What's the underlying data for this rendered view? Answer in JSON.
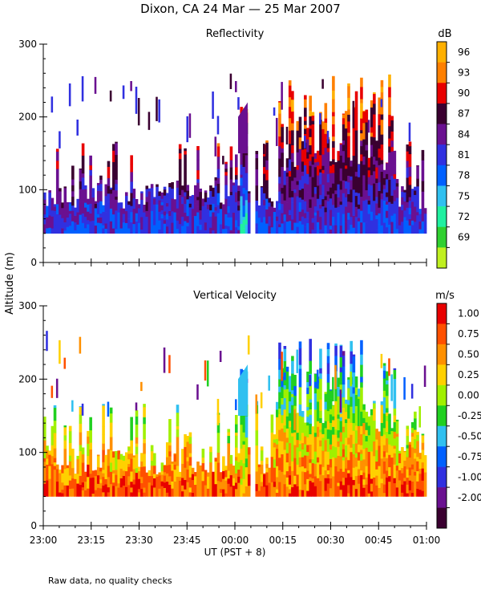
{
  "figure": {
    "title": "Dixon, CA 24 Mar — 25 Mar 2007",
    "ylabel": "Altitude (m)",
    "xlabel": "UT  (PST + 8)",
    "note": "Raw data, no quality checks",
    "x_ticks": [
      "23:00",
      "23:15",
      "23:30",
      "23:45",
      "00:00",
      "00:15",
      "00:30",
      "00:45",
      "01:00"
    ]
  },
  "chart_data": [
    {
      "type": "heatmap",
      "title": "Reflectivity",
      "xlim": [
        "23:00",
        "01:00"
      ],
      "ylim": [
        0,
        300
      ],
      "y_ticks": [
        0,
        100,
        200,
        300
      ],
      "colorbar": {
        "unit": "dB",
        "ticks": [
          "96",
          "93",
          "90",
          "87",
          "84",
          "81",
          "78",
          "75",
          "72",
          "69"
        ],
        "colors": [
          "#ffb000",
          "#ff8000",
          "#e80000",
          "#3a0030",
          "#6a1090",
          "#3030e0",
          "#0060ff",
          "#30c0f0",
          "#20f0a0",
          "#30d030",
          "#c0f020"
        ]
      },
      "data_coverage": {
        "min_altitude": 40,
        "max_altitude": 260,
        "dominant_values_low": "78-81",
        "features": [
          {
            "time": "00:00-00:05",
            "alt_range": [
              40,
              220
            ],
            "values": "75-90"
          },
          {
            "time": "00:35-00:50",
            "alt_range": [
              40,
              260
            ],
            "values": "81-90"
          }
        ]
      }
    },
    {
      "type": "heatmap",
      "title": "Vertical Velocity",
      "xlim": [
        "23:00",
        "01:00"
      ],
      "ylim": [
        0,
        300
      ],
      "y_ticks": [
        0,
        100,
        200,
        300
      ],
      "colorbar": {
        "unit": "m/s",
        "ticks": [
          "1.00",
          "0.75",
          "0.50",
          "0.25",
          "0.00",
          "-0.25",
          "-0.50",
          "-0.75",
          "-1.00",
          "-2.00"
        ],
        "colors": [
          "#e80000",
          "#ff5000",
          "#ff9000",
          "#ffd000",
          "#a0f000",
          "#20d020",
          "#30c0f0",
          "#0060ff",
          "#3030e0",
          "#6a1090",
          "#3a0030"
        ]
      },
      "data_coverage": {
        "min_altitude": 40,
        "max_altitude": 260,
        "dominant_values_low": "0.50-1.00",
        "features": [
          {
            "time": "00:00-00:05",
            "alt_range": [
              40,
              220
            ],
            "values": "-0.25-0.75"
          },
          {
            "time": "00:35-00:50",
            "alt_range": [
              40,
              260
            ],
            "values": "-1.00-1.00"
          }
        ]
      }
    }
  ]
}
